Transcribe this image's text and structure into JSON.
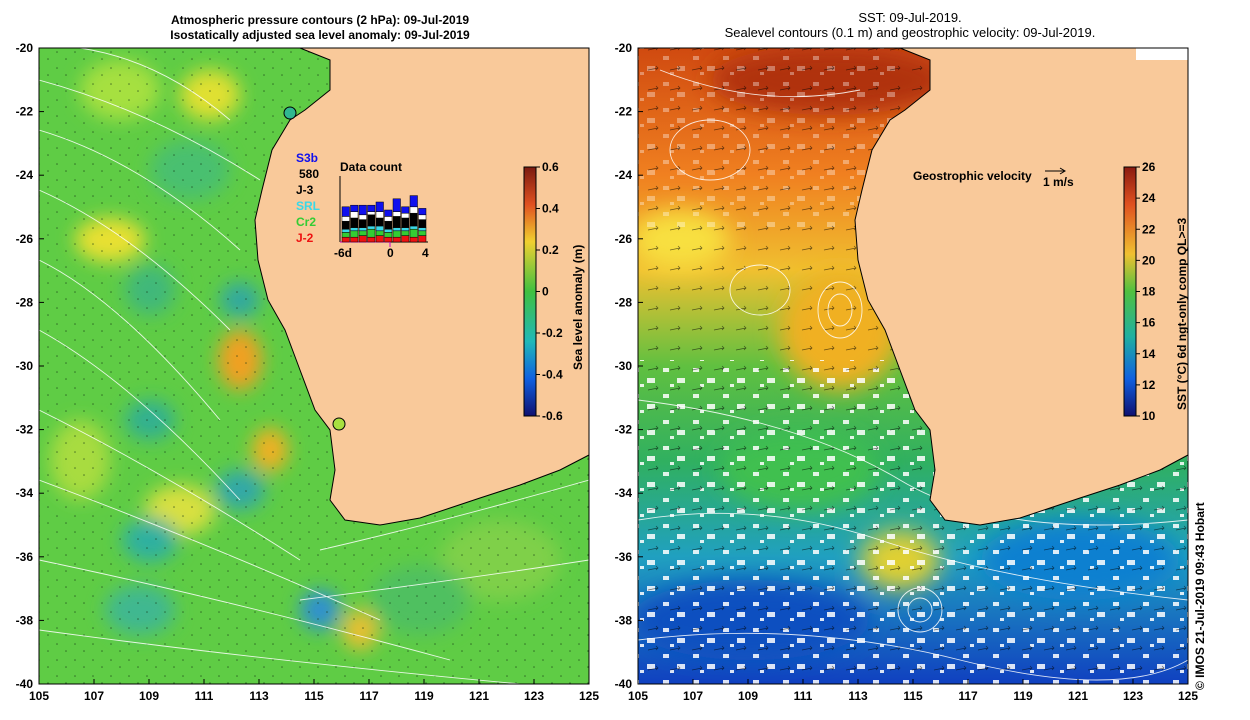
{
  "left_panel": {
    "title_line1": "Atmospheric pressure contours (2 hPa): 09-Jul-2019",
    "title_line2": "Isostatically adjusted sea level anomaly: 09-Jul-2019",
    "lat_ticks": [
      "-20",
      "-22",
      "-24",
      "-26",
      "-28",
      "-30",
      "-32",
      "-34",
      "-36",
      "-38",
      "-40"
    ],
    "lon_ticks": [
      "105",
      "107",
      "109",
      "111",
      "113",
      "115",
      "117",
      "119",
      "121",
      "123",
      "125"
    ],
    "colorbar": {
      "label": "Sea level anomaly (m)",
      "ticks": [
        "0.6",
        "0.4",
        "0.2",
        "0",
        "-0.2",
        "-0.4",
        "-0.6"
      ]
    },
    "legend": {
      "satellites": [
        {
          "label": "S3b",
          "color": "#1010ee"
        },
        {
          "label": "580",
          "color": "#000000"
        },
        {
          "label": "J-3",
          "color": "#000000"
        },
        {
          "label": "SRL",
          "color": "#3ad8e8"
        },
        {
          "label": "Cr2",
          "color": "#33cc33"
        },
        {
          "label": "J-2",
          "color": "#ee1111"
        }
      ],
      "data_count_title": "Data count",
      "axis_labels": [
        "-6d",
        "0",
        "4"
      ]
    }
  },
  "right_panel": {
    "title_line1": "SST: 09-Jul-2019.",
    "title_line2": "Sealevel contours (0.1 m) and geostrophic velocity: 09-Jul-2019.",
    "lat_ticks": [
      "-20",
      "-22",
      "-24",
      "-26",
      "-28",
      "-30",
      "-32",
      "-34",
      "-36",
      "-38",
      "-40"
    ],
    "lon_ticks": [
      "105",
      "107",
      "109",
      "111",
      "113",
      "115",
      "117",
      "119",
      "121",
      "123",
      "125"
    ],
    "velocity_label": "Geostrophic velocity",
    "velocity_scale": "1 m/s",
    "colorbar": {
      "label": "SST (°C) 6d ngt-only comp QL>=3",
      "ticks": [
        "26",
        "24",
        "22",
        "20",
        "18",
        "16",
        "14",
        "12",
        "10"
      ]
    }
  },
  "credit": "© IMOS 21-Jul-2019 09:43 Hobart",
  "colors": {
    "land": "#f9c99a",
    "coastline": "#000000"
  }
}
